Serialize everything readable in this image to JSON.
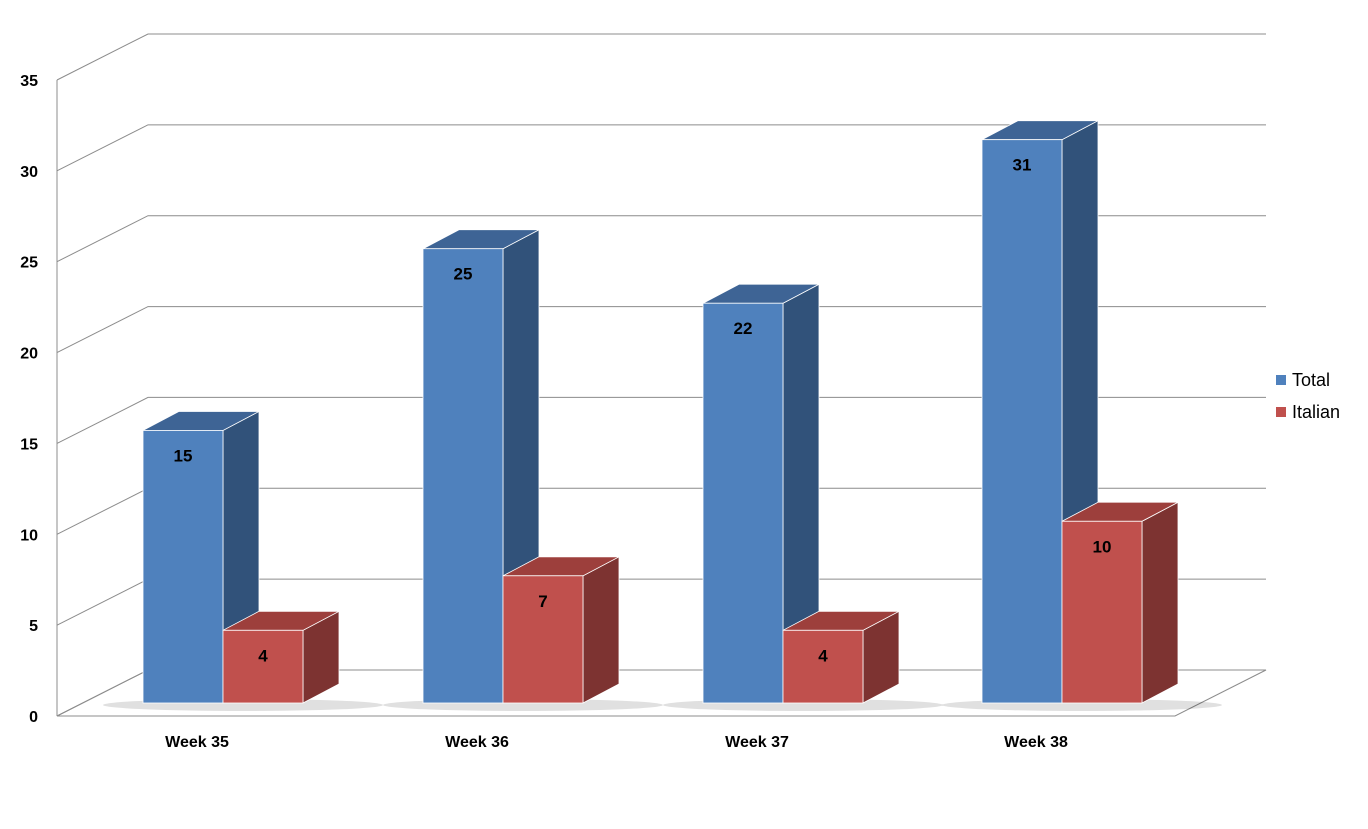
{
  "chart_data": {
    "type": "bar",
    "title": "",
    "xlabel": "",
    "ylabel": "",
    "categories": [
      "Week 35",
      "Week 36",
      "Week 37",
      "Week 38"
    ],
    "series": [
      {
        "name": "Total",
        "values": [
          15,
          25,
          22,
          31
        ],
        "color": "#4F81BD",
        "side_color": "#31527A",
        "top_color": "#3E6495"
      },
      {
        "name": "Italian",
        "values": [
          4,
          7,
          4,
          10
        ],
        "color": "#C0504D",
        "side_color": "#7D3331",
        "top_color": "#9D3F3C"
      }
    ],
    "ylim": [
      0,
      35
    ],
    "yticks": [
      0,
      5,
      10,
      15,
      20,
      25,
      30,
      35
    ],
    "grid": true,
    "legend_position": "right",
    "style": "3d-clustered-column"
  }
}
